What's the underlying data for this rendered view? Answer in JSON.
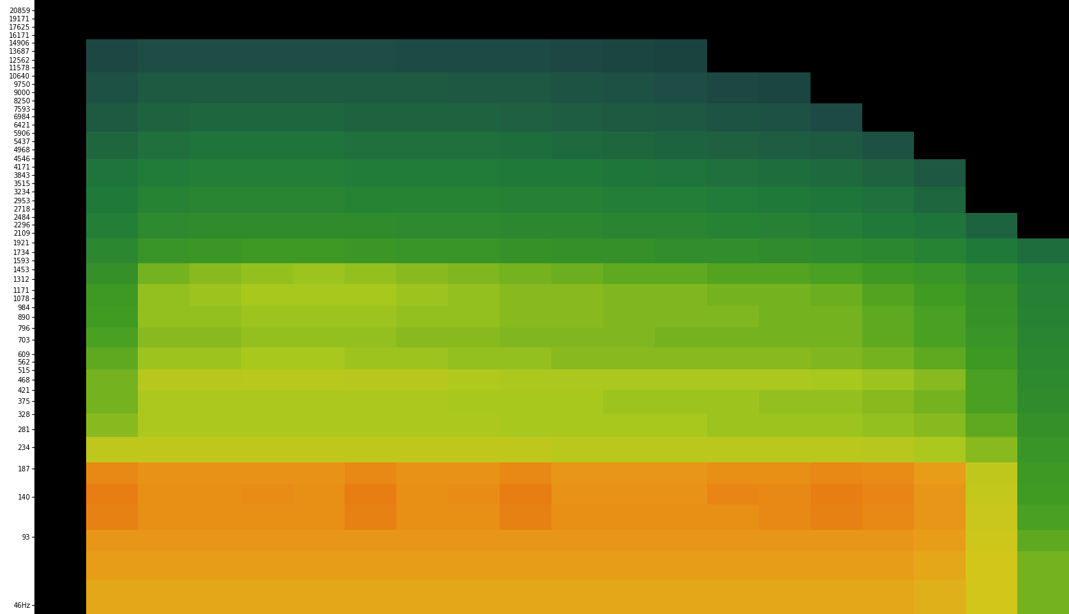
{
  "chart_data": {
    "type": "heatmap",
    "log": "y",
    "tick_labels": "y",
    "grid": false,
    "ylim": [
      42,
      23200
    ],
    "yticks": [
      20859,
      19171,
      17625,
      16171,
      14906,
      13687,
      12562,
      11578,
      10640,
      9750,
      9000,
      8250,
      7593,
      6984,
      6421,
      5906,
      5437,
      4968,
      4546,
      4171,
      3843,
      3515,
      3234,
      2953,
      2718,
      2484,
      2296,
      2109,
      1921,
      1734,
      1593,
      1453,
      1312,
      1171,
      1078,
      984,
      890,
      796,
      703,
      609,
      562,
      515,
      468,
      421,
      375,
      328,
      281,
      234,
      187,
      140,
      93,
      {
        "value": 46,
        "label": "46Hz"
      }
    ],
    "y_edges": [
      42,
      60,
      80,
      100,
      130,
      160,
      200,
      260,
      330,
      420,
      520,
      650,
      800,
      1000,
      1250,
      1550,
      2000,
      2600,
      3400,
      4500,
      6000,
      8000,
      11000,
      15500
    ],
    "clim": [
      0,
      100
    ],
    "cells": [
      [
        null,
        82,
        82,
        82,
        82,
        82,
        82,
        82,
        82,
        82,
        82,
        82,
        82,
        82,
        82,
        82,
        82,
        80,
        74,
        60
      ],
      [
        null,
        84,
        84,
        84,
        84,
        84,
        84,
        84,
        84,
        84,
        84,
        84,
        84,
        84,
        84,
        84,
        84,
        82,
        74,
        60
      ],
      [
        null,
        86,
        86,
        86,
        86,
        86,
        86,
        86,
        86,
        86,
        86,
        86,
        86,
        86,
        86,
        86,
        86,
        84,
        73,
        58
      ],
      [
        null,
        92,
        88,
        88,
        88,
        88,
        92,
        88,
        88,
        92,
        88,
        88,
        88,
        88,
        90,
        92,
        90,
        86,
        72,
        56
      ],
      [
        null,
        93,
        88,
        88,
        89,
        88,
        93,
        88,
        89,
        93,
        87,
        87,
        87,
        91,
        90,
        93,
        91,
        86,
        71,
        55
      ],
      [
        null,
        90,
        87,
        87,
        87,
        87,
        90,
        87,
        87,
        90,
        86,
        86,
        86,
        88,
        88,
        90,
        89,
        84,
        70,
        54
      ],
      [
        null,
        70,
        70,
        70,
        70,
        70,
        70,
        70,
        70,
        70,
        69,
        69,
        69,
        69,
        69,
        69,
        68,
        66,
        62,
        52
      ],
      [
        null,
        62,
        66,
        66,
        66,
        66,
        66,
        66,
        66,
        65,
        65,
        65,
        65,
        64,
        64,
        64,
        63,
        62,
        58,
        50
      ],
      [
        null,
        60,
        66,
        66,
        66,
        66,
        66,
        66,
        65,
        65,
        65,
        64,
        64,
        64,
        63,
        63,
        62,
        60,
        56,
        48
      ],
      [
        null,
        60,
        68,
        68,
        69,
        69,
        68,
        68,
        67,
        66,
        66,
        66,
        66,
        66,
        66,
        65,
        64,
        62,
        56,
        47
      ],
      [
        null,
        58,
        64,
        64,
        65,
        65,
        64,
        64,
        63,
        63,
        62,
        62,
        62,
        62,
        62,
        61,
        60,
        58,
        54,
        46
      ],
      [
        null,
        56,
        62,
        62,
        63,
        63,
        63,
        62,
        62,
        61,
        61,
        61,
        60,
        60,
        60,
        60,
        58,
        56,
        52,
        45
      ],
      [
        null,
        55,
        63,
        63,
        64,
        64,
        64,
        63,
        63,
        62,
        62,
        61,
        61,
        61,
        60,
        60,
        58,
        56,
        51,
        44
      ],
      [
        null,
        54,
        63,
        64,
        65,
        65,
        65,
        64,
        63,
        62,
        62,
        61,
        61,
        60,
        60,
        59,
        57,
        55,
        50,
        43
      ],
      [
        null,
        50,
        60,
        62,
        63,
        64,
        63,
        62,
        61,
        60,
        59,
        58,
        58,
        57,
        57,
        56,
        54,
        52,
        47,
        42
      ],
      [
        null,
        46,
        52,
        53,
        54,
        54,
        53,
        52,
        52,
        51,
        50,
        50,
        49,
        49,
        48,
        47,
        46,
        44,
        40,
        36
      ],
      [
        null,
        42,
        47,
        48,
        48,
        48,
        48,
        47,
        47,
        46,
        46,
        45,
        45,
        44,
        43,
        42,
        40,
        38,
        33,
        null
      ],
      [
        null,
        40,
        44,
        45,
        45,
        45,
        44,
        44,
        44,
        43,
        43,
        42,
        42,
        41,
        40,
        39,
        37,
        34,
        null,
        null
      ],
      [
        null,
        38,
        41,
        42,
        42,
        42,
        41,
        41,
        41,
        40,
        40,
        39,
        38,
        37,
        36,
        35,
        33,
        29,
        null,
        null
      ],
      [
        null,
        34,
        37,
        38,
        38,
        38,
        37,
        37,
        37,
        36,
        35,
        34,
        33,
        32,
        31,
        30,
        27,
        null,
        null,
        null
      ],
      [
        null,
        30,
        33,
        34,
        34,
        34,
        33,
        33,
        33,
        32,
        31,
        30,
        29,
        28,
        27,
        25,
        null,
        null,
        null,
        null
      ],
      [
        null,
        27,
        30,
        30,
        30,
        30,
        30,
        30,
        29,
        29,
        28,
        27,
        26,
        24,
        23,
        null,
        null,
        null,
        null,
        null
      ],
      [
        null,
        24,
        26,
        26,
        26,
        26,
        26,
        25,
        25,
        25,
        24,
        23,
        22,
        null,
        null,
        null,
        null,
        null,
        null,
        null
      ]
    ]
  }
}
